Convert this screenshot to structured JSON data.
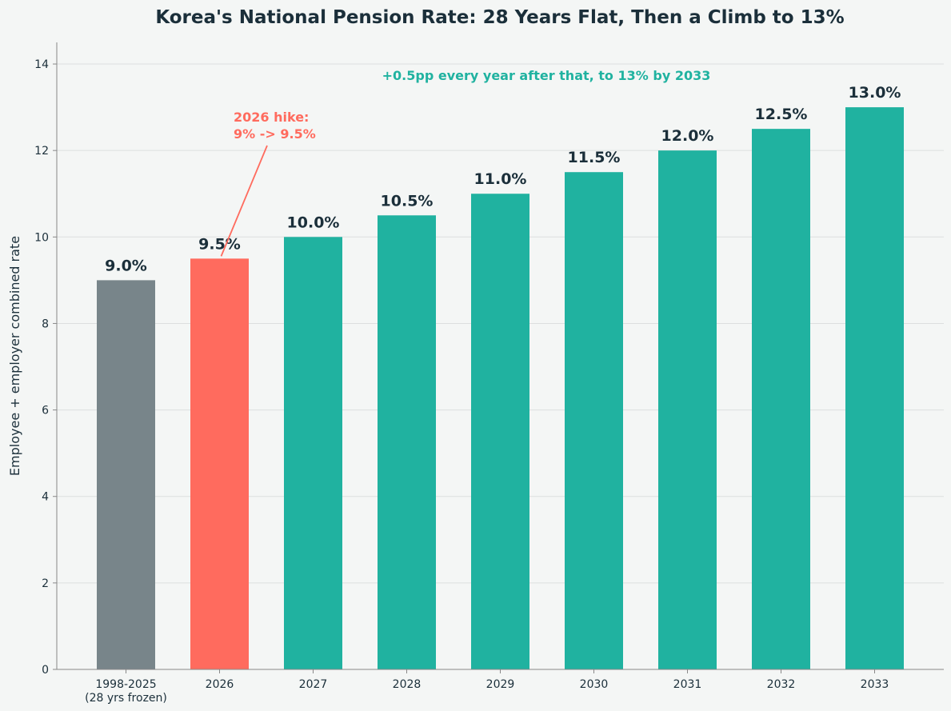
{
  "chart_data": {
    "type": "bar",
    "title": "Korea's National Pension Rate: 28 Years Flat, Then a Climb to 13%",
    "ylabel": "Employee + employer combined rate",
    "xlabel": "",
    "ylim": [
      0,
      14.5
    ],
    "yticks": [
      0,
      2,
      4,
      6,
      8,
      10,
      12,
      14
    ],
    "categories": [
      [
        "1998-2025",
        "(28 yrs frozen)"
      ],
      [
        "2026"
      ],
      [
        "2027"
      ],
      [
        "2028"
      ],
      [
        "2029"
      ],
      [
        "2030"
      ],
      [
        "2031"
      ],
      [
        "2032"
      ],
      [
        "2033"
      ]
    ],
    "values": [
      9.0,
      9.5,
      10.0,
      10.5,
      11.0,
      11.5,
      12.0,
      12.5,
      13.0
    ],
    "value_labels": [
      "9.0%",
      "9.5%",
      "10.0%",
      "10.5%",
      "11.0%",
      "11.5%",
      "12.0%",
      "12.5%",
      "13.0%"
    ],
    "bar_colors": [
      "#78858a",
      "#ff6b5e",
      "#20b2a0",
      "#20b2a0",
      "#20b2a0",
      "#20b2a0",
      "#20b2a0",
      "#20b2a0",
      "#20b2a0"
    ],
    "grid": true,
    "annotations": [
      {
        "lines": [
          "2026 hike:",
          "9% -> 9.5%"
        ],
        "color": "#ff6b5e",
        "target_category": 1
      },
      {
        "lines": [
          "+0.5pp every year after that, to 13% by 2033"
        ],
        "color": "#20b2a0"
      }
    ]
  },
  "colors": {
    "background": "#f4f6f5",
    "text": "#1b2f3a",
    "grid": "#dcdfdf",
    "axis": "#888888"
  }
}
